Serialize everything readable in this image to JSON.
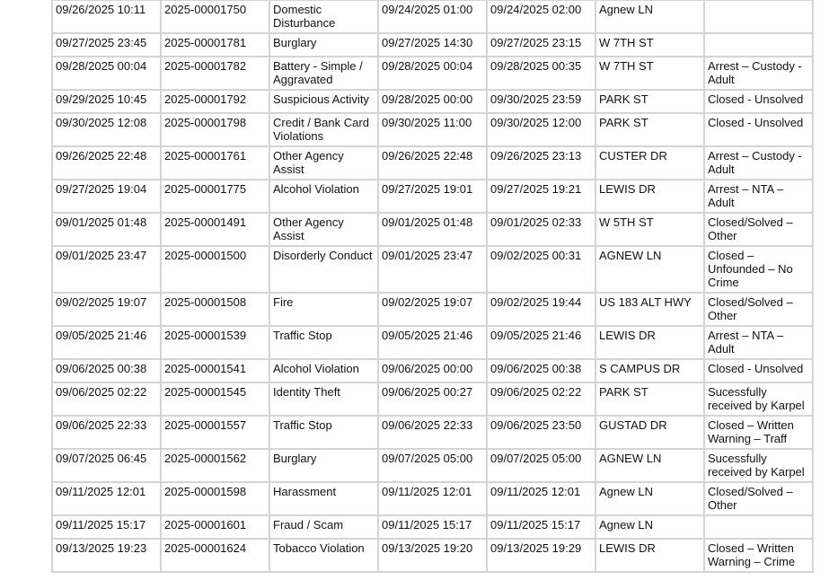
{
  "rows": [
    [
      "09/26/2025 10:11",
      "2025-00001750",
      "Domestic Disturbance",
      "09/24/2025 01:00",
      "09/24/2025 02:00",
      "Agnew LN",
      ""
    ],
    [
      "09/27/2025 23:45",
      "2025-00001781",
      "Burglary",
      "09/27/2025 14:30",
      "09/27/2025 23:15",
      "W 7TH ST",
      ""
    ],
    [
      "09/28/2025 00:04",
      "2025-00001782",
      "Battery - Simple / Aggravated",
      "09/28/2025 00:04",
      "09/28/2025 00:35",
      "W 7TH ST",
      "Arrest – Custody - Adult"
    ],
    [
      "09/29/2025 10:45",
      "2025-00001792",
      "Suspicious Activity",
      "09/28/2025 00:00",
      "09/30/2025 23:59",
      "PARK ST",
      "Closed - Unsolved"
    ],
    [
      "09/30/2025 12:08",
      "2025-00001798",
      "Credit / Bank Card Violations",
      "09/30/2025 11:00",
      "09/30/2025 12:00",
      "PARK ST",
      "Closed - Unsolved"
    ],
    [
      "09/26/2025 22:48",
      "2025-00001761",
      "Other Agency Assist",
      "09/26/2025 22:48",
      "09/26/2025 23:13",
      "CUSTER DR",
      "Arrest – Custody - Adult"
    ],
    [
      "09/27/2025 19:04",
      "2025-00001775",
      "Alcohol Violation",
      "09/27/2025 19:01",
      "09/27/2025 19:21",
      "LEWIS DR",
      "Arrest – NTA – Adult"
    ],
    [
      "09/01/2025 01:48",
      "2025-00001491",
      "Other Agency Assist",
      "09/01/2025 01:48",
      "09/01/2025 02:33",
      "W 5TH ST",
      "Closed/Solved – Other"
    ],
    [
      "09/01/2025 23:47",
      "2025-00001500",
      "Disorderly Conduct",
      "09/01/2025 23:47",
      "09/02/2025 00:31",
      "AGNEW LN",
      "Closed – Unfounded – No Crime"
    ],
    [
      "09/02/2025 19:07",
      "2025-00001508",
      "Fire",
      "09/02/2025 19:07",
      "09/02/2025 19:44",
      "US 183 ALT HWY",
      "Closed/Solved – Other"
    ],
    [
      "09/05/2025 21:46",
      "2025-00001539",
      "Traffic Stop",
      "09/05/2025 21:46",
      "09/05/2025 21:46",
      "LEWIS DR",
      "Arrest – NTA – Adult"
    ],
    [
      "09/06/2025 00:38",
      "2025-00001541",
      "Alcohol Violation",
      "09/06/2025 00:00",
      "09/06/2025 00:38",
      "S CAMPUS DR",
      "Closed - Unsolved"
    ],
    [
      "09/06/2025 02:22",
      "2025-00001545",
      "Identity Theft",
      "09/06/2025 00:27",
      "09/06/2025 02:22",
      "PARK ST",
      "Sucessfully received by Karpel"
    ],
    [
      "09/06/2025 22:33",
      "2025-00001557",
      "Traffic Stop",
      "09/06/2025 22:33",
      "09/06/2025 23:50",
      "GUSTAD DR",
      "Closed – Written Warning – Traff"
    ],
    [
      "09/07/2025 06:45",
      "2025-00001562",
      "Burglary",
      "09/07/2025 05:00",
      "09/07/2025 05:00",
      "AGNEW LN",
      "Sucessfully received by Karpel"
    ],
    [
      "09/11/2025 12:01",
      "2025-00001598",
      "Harassment",
      "09/11/2025 12:01",
      "09/11/2025 12:01",
      "Agnew LN",
      "Closed/Solved – Other"
    ],
    [
      "09/11/2025 15:17",
      "2025-00001601",
      "Fraud / Scam",
      "09/11/2025 15:17",
      "09/11/2025 15:17",
      "Agnew LN",
      ""
    ],
    [
      "09/13/2025 19:23",
      "2025-00001624",
      "Tobacco Violation",
      "09/13/2025 19:20",
      "09/13/2025 19:29",
      "LEWIS DR",
      "Closed – Written Warning – Crime"
    ]
  ]
}
